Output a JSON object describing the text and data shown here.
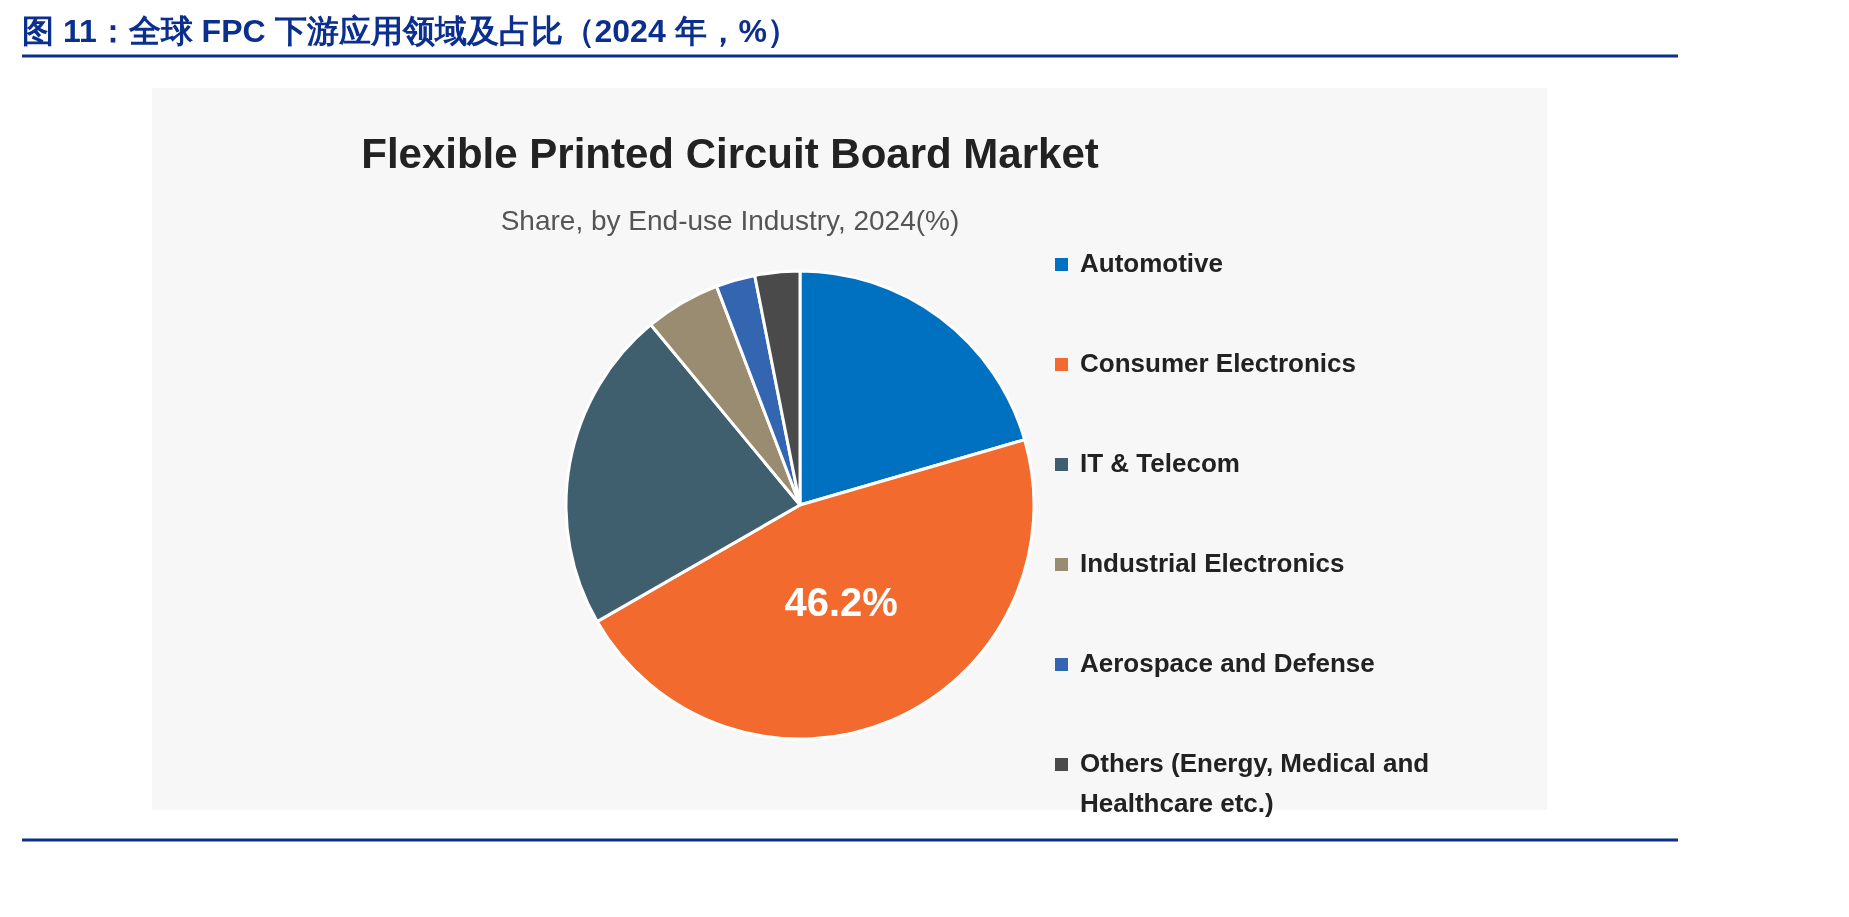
{
  "chart_data": {
    "type": "pie",
    "title": "图 11：全球 FPC 下游应用领域及占比（2024 年，%）",
    "subtitle": "Flexible Printed Circuit Board Market",
    "annotations": [
      "Share, by End-use Industry, 2024(%)"
    ],
    "categories": [
      "Automotive",
      "Consumer Electronics",
      "IT & Telecom",
      "Industrial Electronics",
      "Aerospace and Defense",
      "Others (Energy, Medical and Healthcare etc.)"
    ],
    "values": [
      20.5,
      46.2,
      22.3,
      5.2,
      2.7,
      3.1
    ],
    "colors": [
      "#0070c0",
      "#f26a2e",
      "#3f5f6e",
      "#9a8c70",
      "#3465b0",
      "#4a4a4a"
    ],
    "value_labels": [
      null,
      "46.2%",
      null,
      null,
      null,
      null
    ],
    "legend": "right"
  }
}
